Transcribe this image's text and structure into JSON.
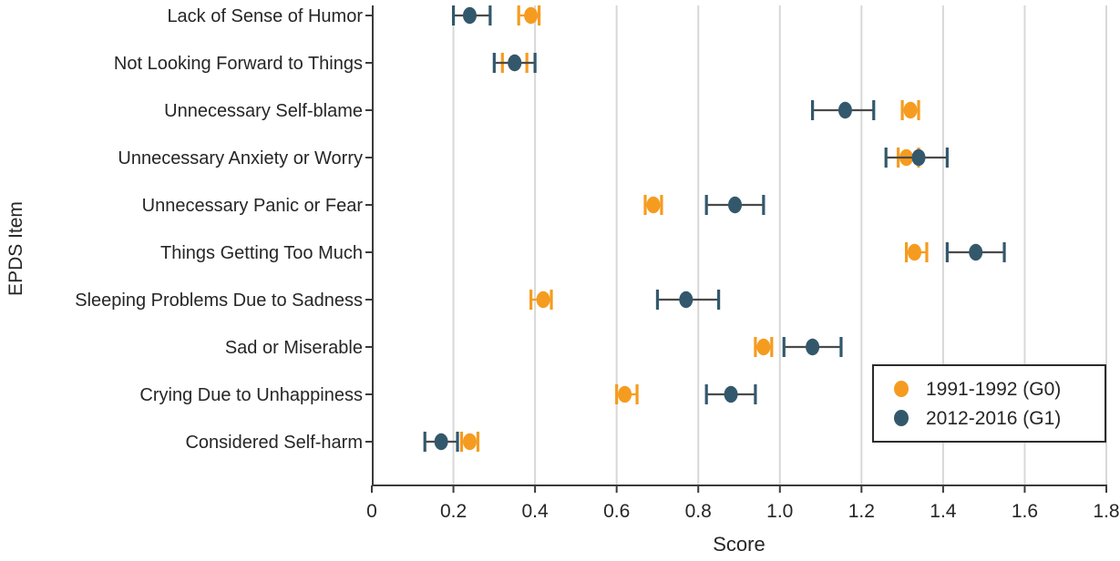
{
  "chart_data": {
    "type": "scatter",
    "subtype": "dot-plot-with-error-bars",
    "title": "",
    "xlabel": "Score",
    "ylabel": "EPDS Item",
    "xlim": [
      0,
      1.8
    ],
    "xtick_values": [
      0,
      0.2,
      0.4,
      0.6,
      0.8,
      1.0,
      1.2,
      1.4,
      1.6,
      1.8
    ],
    "xtick_labels": [
      "0",
      "0.2",
      "0.4",
      "0.6",
      "0.8",
      "1.0",
      "1.2",
      "1.4",
      "1.6",
      "1.8"
    ],
    "grid": "vertical-on",
    "legend_position": "bottom-right",
    "categories": [
      "Lack of Sense of Humor",
      "Not Looking Forward to Things",
      "Unnecessary Self-blame",
      "Unnecessary Anxiety or Worry",
      "Unnecessary Panic or Fear",
      "Things Getting Too Much",
      "Sleeping Problems Due to Sadness",
      "Sad or Miserable",
      "Crying Due to Unhappiness",
      "Considered Self-harm"
    ],
    "series": [
      {
        "name": "1991-1992 (G0)",
        "color": "#F59C20",
        "line_color": "#F59C20",
        "values": [
          0.39,
          0.35,
          1.32,
          1.31,
          0.69,
          1.33,
          0.42,
          0.96,
          0.62,
          0.24
        ],
        "ci_low": [
          0.36,
          0.32,
          1.3,
          1.29,
          0.67,
          1.31,
          0.39,
          0.94,
          0.6,
          0.22
        ],
        "ci_high": [
          0.41,
          0.38,
          1.34,
          1.34,
          0.71,
          1.36,
          0.44,
          0.98,
          0.65,
          0.26
        ]
      },
      {
        "name": "2012-2016 (G1)",
        "color": "#33586C",
        "line_color": "#4A4A4A",
        "values": [
          0.24,
          0.35,
          1.16,
          1.34,
          0.89,
          1.48,
          0.77,
          1.08,
          0.88,
          0.17
        ],
        "ci_low": [
          0.2,
          0.3,
          1.08,
          1.26,
          0.82,
          1.41,
          0.7,
          1.01,
          0.82,
          0.13
        ],
        "ci_high": [
          0.29,
          0.4,
          1.23,
          1.41,
          0.96,
          1.55,
          0.85,
          1.15,
          0.94,
          0.21
        ]
      }
    ],
    "colors": {
      "grid": "#D8D8D8",
      "axis": "#3B3B3B",
      "text": "#262626",
      "legend_border": "#2B2B2B",
      "background": "#FFFFFF"
    }
  }
}
